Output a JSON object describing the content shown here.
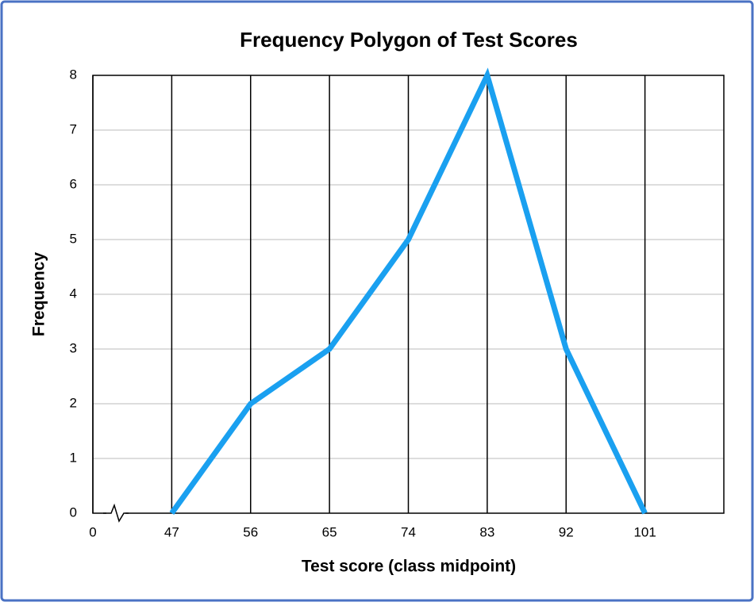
{
  "chart_data": {
    "type": "line",
    "title": "Frequency Polygon of Test Scores",
    "x_label": "Test score (class midpoint)",
    "y_label": "Frequency",
    "x": [
      47,
      56,
      65,
      74,
      83,
      92,
      101
    ],
    "series": [
      {
        "name": "Frequency",
        "color": "#1aa0f0",
        "values": [
          0,
          2,
          3,
          5,
          8,
          3,
          0
        ]
      }
    ],
    "xlim": [
      38,
      110
    ],
    "xticks": [
      0,
      47,
      56,
      65,
      74,
      83,
      92,
      101
    ],
    "axis_break": true,
    "ylim": [
      0,
      8
    ],
    "yticks": [
      0,
      1,
      2,
      3,
      4,
      5,
      6,
      7,
      8
    ],
    "grid": true
  }
}
